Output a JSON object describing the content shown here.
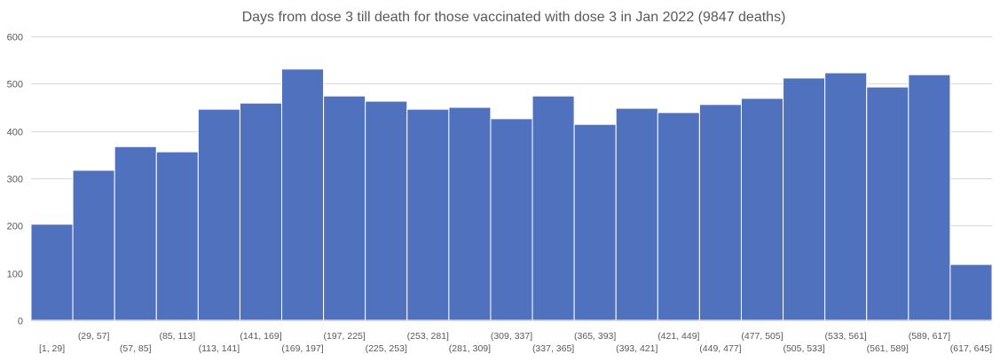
{
  "chart_data": {
    "type": "bar",
    "title": "Days from dose 3 till death for those vaccinated with dose 3 in Jan  2022 (9847 deaths)",
    "xlabel": "",
    "ylabel": "",
    "ylim": [
      0,
      600
    ],
    "yticks": [
      "0",
      "100",
      "200",
      "300",
      "400",
      "500",
      "600"
    ],
    "grid": true,
    "legend": "none",
    "bar_color": "#4F71BE",
    "categories": [
      "[1, 29]",
      "(29, 57]",
      "(57, 85]",
      "(85, 113]",
      "(113, 141]",
      "(141, 169]",
      "(169, 197]",
      "(197, 225]",
      "(225, 253]",
      "(253, 281]",
      "(281, 309]",
      "(309, 337]",
      "(337, 365]",
      "(365, 393]",
      "(393, 421]",
      "(421, 449]",
      "(449, 477]",
      "(477, 505]",
      "(505, 533]",
      "(533, 561]",
      "(561, 589]",
      "(589, 617]",
      "(617, 645]"
    ],
    "values": [
      203,
      317,
      367,
      356,
      446,
      459,
      531,
      474,
      463,
      446,
      450,
      426,
      474,
      414,
      448,
      439,
      456,
      469,
      512,
      523,
      493,
      519,
      118
    ]
  }
}
